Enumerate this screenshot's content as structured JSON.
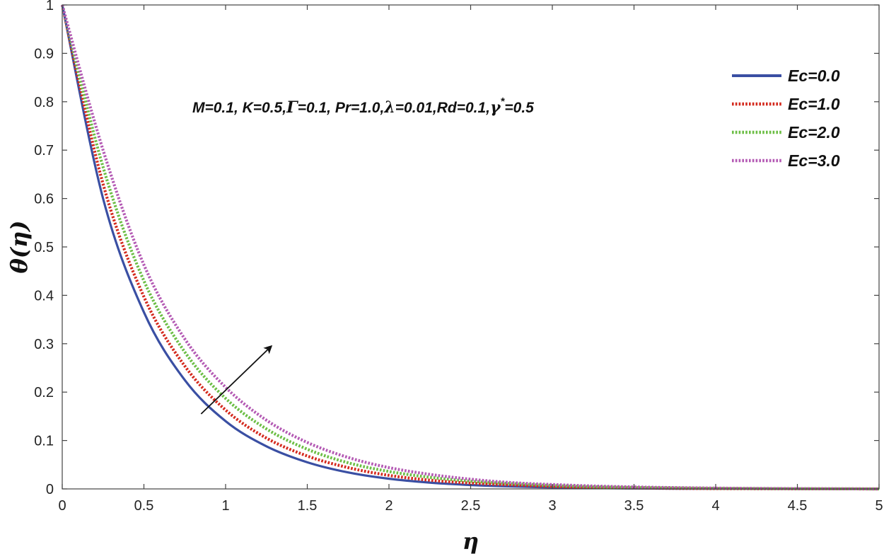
{
  "chart_data": {
    "type": "line",
    "title": "",
    "xlabel": "η",
    "ylabel": "θ(η)",
    "xlim": [
      0,
      5
    ],
    "ylim": [
      0,
      1
    ],
    "xticks": [
      0,
      0.5,
      1,
      1.5,
      2,
      2.5,
      3,
      3.5,
      4,
      4.5,
      5
    ],
    "xtick_labels": [
      "0",
      "0.5",
      "1",
      "1.5",
      "2",
      "2.5",
      "3",
      "3.5",
      "4",
      "4.5",
      "5"
    ],
    "yticks": [
      0,
      0.1,
      0.2,
      0.3,
      0.4,
      0.5,
      0.6,
      0.7,
      0.8,
      0.9,
      1
    ],
    "ytick_labels": [
      "0",
      "0.1",
      "0.2",
      "0.3",
      "0.4",
      "0.5",
      "0.6",
      "0.7",
      "0.8",
      "0.9",
      "1"
    ],
    "grid": false,
    "legend_position": "top-right",
    "x": [
      0,
      0.25,
      0.5,
      0.75,
      1.0,
      1.25,
      1.5,
      1.75,
      2.0,
      2.25,
      2.5,
      2.75,
      3.0,
      3.25,
      3.5,
      3.75,
      4.0,
      4.25,
      4.5,
      4.75,
      5.0
    ],
    "series": [
      {
        "name": "Ec=0.0",
        "color": "#3A4FA3",
        "style": "solid",
        "values": [
          1.0,
          0.6,
          0.365,
          0.225,
          0.14,
          0.088,
          0.055,
          0.034,
          0.021,
          0.013,
          0.008,
          0.005,
          0.003,
          0.002,
          0.001,
          0.0006,
          0.0003,
          0.0002,
          0.0001,
          5e-05,
          0.0
        ]
      },
      {
        "name": "Ec=1.0",
        "color": "#D42A1E",
        "style": "dotted",
        "values": [
          1.0,
          0.63,
          0.397,
          0.254,
          0.163,
          0.105,
          0.068,
          0.044,
          0.028,
          0.018,
          0.012,
          0.008,
          0.005,
          0.003,
          0.002,
          0.0012,
          0.0007,
          0.0004,
          0.0002,
          0.0001,
          0.0
        ]
      },
      {
        "name": "Ec=2.0",
        "color": "#6CBE45",
        "style": "dotted",
        "values": [
          1.0,
          0.665,
          0.43,
          0.283,
          0.187,
          0.124,
          0.082,
          0.054,
          0.036,
          0.024,
          0.016,
          0.011,
          0.007,
          0.0045,
          0.003,
          0.002,
          0.0012,
          0.0007,
          0.0004,
          0.0002,
          0.0
        ]
      },
      {
        "name": "Ec=3.0",
        "color": "#B45AB4",
        "style": "dotted",
        "values": [
          1.0,
          0.7,
          0.463,
          0.31,
          0.21,
          0.142,
          0.096,
          0.065,
          0.044,
          0.03,
          0.02,
          0.013,
          0.009,
          0.006,
          0.004,
          0.0026,
          0.0016,
          0.001,
          0.0006,
          0.0003,
          0.0
        ]
      }
    ],
    "annotation": {
      "parts": [
        {
          "text": "M=0.1, K=0.5,",
          "font": "sans"
        },
        {
          "text": "Γ",
          "font": "serif"
        },
        {
          "text": "=0.1, Pr=1.0,",
          "font": "sans"
        },
        {
          "text": "λ",
          "font": "serif"
        },
        {
          "text": "=0.01,Rd=0.1,",
          "font": "sans"
        },
        {
          "text": "γ",
          "font": "serif"
        },
        {
          "text": "*",
          "font": "sans",
          "superscript": true
        },
        {
          "text": "=0.5",
          "font": "sans"
        }
      ]
    },
    "arrow": {
      "from": {
        "x": 0.85,
        "y": 0.155
      },
      "to": {
        "x": 1.28,
        "y": 0.295
      },
      "color": "#111111"
    }
  }
}
